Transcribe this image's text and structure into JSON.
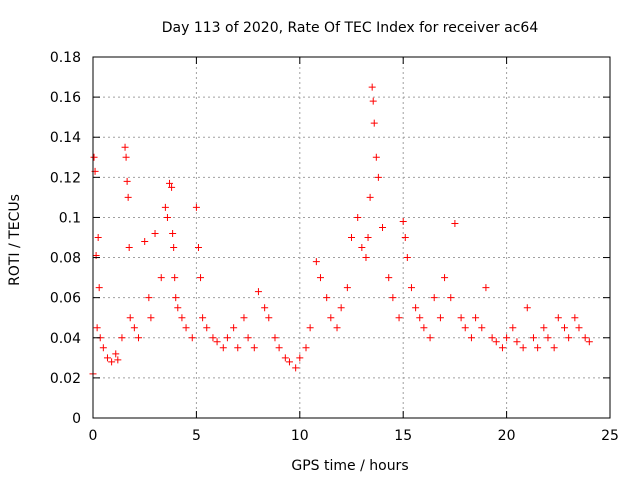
{
  "chart_data": {
    "type": "scatter",
    "title": "Day 113 of 2020, Rate Of TEC Index for receiver ac64",
    "xlabel": "GPS time / hours",
    "ylabel": "ROTI / TECUs",
    "xlim": [
      0,
      25
    ],
    "ylim": [
      0,
      0.18
    ],
    "x_ticks": [
      0,
      5,
      10,
      15,
      20,
      25
    ],
    "x_tick_labels": [
      "0",
      "5",
      "10",
      "15",
      "20",
      "25"
    ],
    "y_ticks": [
      0,
      0.02,
      0.04,
      0.06,
      0.08,
      0.1,
      0.12,
      0.14,
      0.16,
      0.18
    ],
    "y_tick_labels": [
      "0",
      "0.02",
      "0.04",
      "0.06",
      "0.08",
      "0.1",
      "0.12",
      "0.14",
      "0.16",
      "0.18"
    ],
    "grid": true,
    "marker": "+",
    "color": "#ff0000",
    "series": [
      {
        "name": "ROTI",
        "x": [
          0.0,
          0.05,
          0.1,
          0.15,
          0.2,
          0.25,
          0.3,
          0.35,
          0.5,
          0.7,
          0.9,
          1.1,
          1.2,
          1.4,
          1.55,
          1.6,
          1.65,
          1.7,
          1.75,
          1.8,
          2.0,
          2.2,
          2.5,
          2.7,
          2.8,
          3.0,
          3.3,
          3.5,
          3.6,
          3.7,
          3.8,
          3.85,
          3.9,
          3.95,
          4.0,
          4.1,
          4.3,
          4.5,
          4.8,
          5.0,
          5.1,
          5.2,
          5.3,
          5.5,
          5.8,
          6.0,
          6.3,
          6.5,
          6.8,
          7.0,
          7.3,
          7.5,
          7.8,
          8.0,
          8.3,
          8.5,
          8.8,
          9.0,
          9.3,
          9.5,
          9.8,
          10.0,
          10.3,
          10.5,
          10.8,
          11.0,
          11.3,
          11.5,
          11.8,
          12.0,
          12.3,
          12.5,
          12.8,
          13.0,
          13.2,
          13.3,
          13.4,
          13.5,
          13.55,
          13.6,
          13.7,
          13.8,
          14.0,
          14.3,
          14.5,
          14.8,
          15.0,
          15.1,
          15.2,
          15.4,
          15.6,
          15.8,
          16.0,
          16.3,
          16.5,
          16.8,
          17.0,
          17.3,
          17.5,
          17.8,
          18.0,
          18.3,
          18.5,
          18.8,
          19.0,
          19.3,
          19.5,
          19.8,
          20.0,
          20.3,
          20.5,
          20.8,
          21.0,
          21.3,
          21.5,
          21.8,
          22.0,
          22.3,
          22.5,
          22.8,
          23.0,
          23.3,
          23.5,
          23.8,
          24.0
        ],
        "y": [
          0.022,
          0.13,
          0.123,
          0.081,
          0.045,
          0.09,
          0.065,
          0.04,
          0.035,
          0.03,
          0.028,
          0.032,
          0.029,
          0.04,
          0.135,
          0.13,
          0.118,
          0.11,
          0.085,
          0.05,
          0.045,
          0.04,
          0.088,
          0.06,
          0.05,
          0.092,
          0.07,
          0.105,
          0.1,
          0.117,
          0.115,
          0.092,
          0.085,
          0.07,
          0.06,
          0.055,
          0.05,
          0.045,
          0.04,
          0.105,
          0.085,
          0.07,
          0.05,
          0.045,
          0.04,
          0.038,
          0.035,
          0.04,
          0.045,
          0.035,
          0.05,
          0.04,
          0.035,
          0.063,
          0.055,
          0.05,
          0.04,
          0.035,
          0.03,
          0.028,
          0.025,
          0.03,
          0.035,
          0.045,
          0.078,
          0.07,
          0.06,
          0.05,
          0.045,
          0.055,
          0.065,
          0.09,
          0.1,
          0.085,
          0.08,
          0.09,
          0.11,
          0.165,
          0.158,
          0.147,
          0.13,
          0.12,
          0.095,
          0.07,
          0.06,
          0.05,
          0.098,
          0.09,
          0.08,
          0.065,
          0.055,
          0.05,
          0.045,
          0.04,
          0.06,
          0.05,
          0.07,
          0.06,
          0.097,
          0.05,
          0.045,
          0.04,
          0.05,
          0.045,
          0.065,
          0.04,
          0.038,
          0.035,
          0.04,
          0.045,
          0.038,
          0.035,
          0.055,
          0.04,
          0.035,
          0.045,
          0.04,
          0.035,
          0.05,
          0.045,
          0.04,
          0.05,
          0.045,
          0.04,
          0.038
        ]
      }
    ]
  }
}
